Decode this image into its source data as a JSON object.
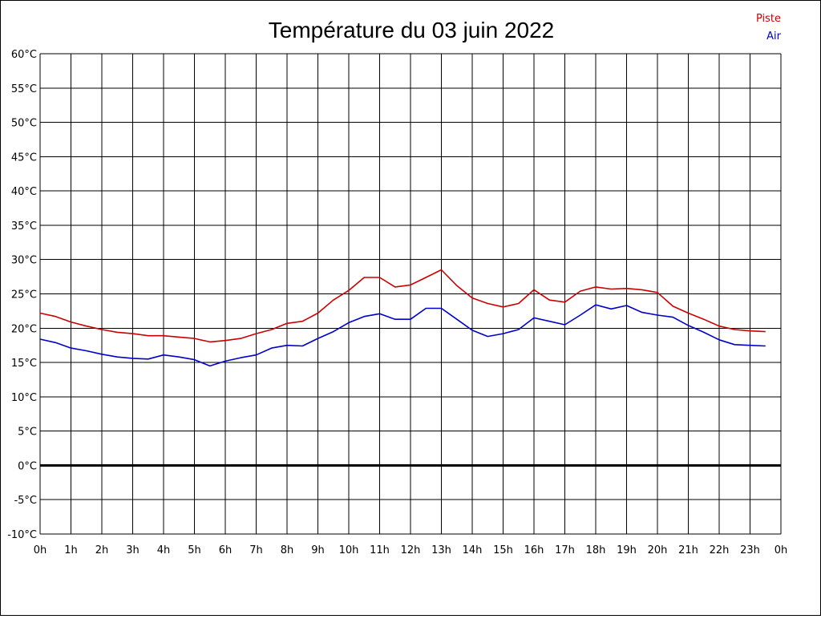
{
  "chart_data": {
    "type": "line",
    "title": "Température du 03 juin 2022",
    "xlabel": "",
    "ylabel": "",
    "x_ticks": [
      "0h",
      "1h",
      "2h",
      "3h",
      "4h",
      "5h",
      "6h",
      "7h",
      "8h",
      "9h",
      "10h",
      "11h",
      "12h",
      "13h",
      "14h",
      "15h",
      "16h",
      "17h",
      "18h",
      "19h",
      "20h",
      "21h",
      "22h",
      "23h",
      "0h"
    ],
    "y_ticks": [
      "60°C",
      "55°C",
      "50°C",
      "45°C",
      "40°C",
      "35°C",
      "30°C",
      "25°C",
      "20°C",
      "15°C",
      "10°C",
      "5°C",
      "0°C",
      "-5°C",
      "-10°C"
    ],
    "xlim": [
      0,
      24
    ],
    "ylim": [
      -10,
      60
    ],
    "grid": true,
    "legend_position": "top-right",
    "zero_line": true,
    "x": [
      0,
      0.5,
      1,
      1.5,
      2,
      2.5,
      3,
      3.5,
      4,
      4.5,
      5,
      5.5,
      6,
      6.5,
      7,
      7.5,
      8,
      8.5,
      9,
      9.5,
      10,
      10.5,
      11,
      11.5,
      12,
      12.5,
      13,
      13.5,
      14,
      14.5,
      15,
      15.5,
      16,
      16.5,
      17,
      17.5,
      18,
      18.5,
      19,
      19.5,
      20,
      20.5,
      21,
      21.5,
      22,
      22.5,
      23,
      23.5
    ],
    "series": [
      {
        "name": "Piste",
        "color": "#cc0000",
        "values": [
          22.2,
          21.7,
          20.9,
          20.3,
          19.8,
          19.4,
          19.2,
          18.9,
          18.9,
          18.7,
          18.5,
          18.0,
          18.2,
          18.5,
          19.2,
          19.8,
          20.7,
          21.0,
          22.2,
          24.1,
          25.5,
          27.4,
          27.4,
          26.0,
          26.3,
          27.4,
          28.5,
          26.2,
          24.4,
          23.6,
          23.1,
          23.6,
          25.6,
          24.1,
          23.8,
          25.4,
          26.0,
          25.7,
          25.8,
          25.6,
          25.2,
          23.2,
          22.2,
          21.3,
          20.3,
          19.8,
          19.6,
          19.5
        ]
      },
      {
        "name": "Air",
        "color": "#0000cc",
        "values": [
          18.4,
          17.9,
          17.1,
          16.7,
          16.2,
          15.8,
          15.6,
          15.5,
          16.1,
          15.8,
          15.4,
          14.5,
          15.2,
          15.7,
          16.1,
          17.1,
          17.5,
          17.4,
          18.5,
          19.5,
          20.8,
          21.7,
          22.1,
          21.3,
          21.3,
          22.9,
          22.9,
          21.3,
          19.7,
          18.8,
          19.2,
          19.8,
          21.5,
          21.0,
          20.5,
          21.9,
          23.4,
          22.8,
          23.3,
          22.3,
          21.9,
          21.6,
          20.4,
          19.4,
          18.3,
          17.6,
          17.5,
          17.4
        ]
      }
    ]
  }
}
